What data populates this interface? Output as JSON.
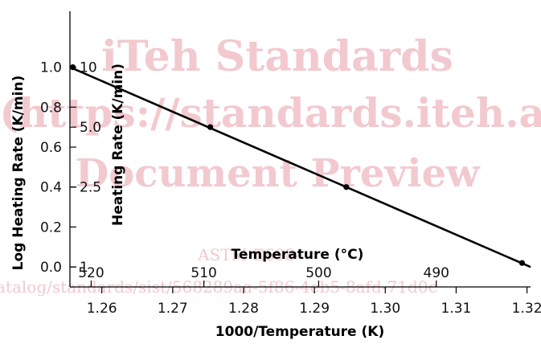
{
  "chart_data": {
    "type": "line",
    "xlabel": "1000/Temperature (K)",
    "ylabel": "Log Heating Rate (K/min)",
    "y2label": "Heating Rate (K/min)",
    "secondary_x_label": "Temperature (°C)",
    "x_ticks": [
      "1.26",
      "1.27",
      "1.28",
      "1.29",
      "1.30",
      "1.31",
      "1.32"
    ],
    "y_ticks": [
      "0.0",
      "0.2",
      "0.4",
      "0.6",
      "0.8",
      "1.0"
    ],
    "y2_ticks": [
      {
        "label": "1",
        "log": 0.0
      },
      {
        "label": "2.5",
        "log": 0.4
      },
      {
        "label": "5.0",
        "log": 0.7
      },
      {
        "label": "10",
        "log": 1.0
      }
    ],
    "secondary_x_ticks": [
      {
        "label": "520",
        "x": 1.2585
      },
      {
        "label": "510",
        "x": 1.2744
      },
      {
        "label": "500",
        "x": 1.2906
      },
      {
        "label": "490",
        "x": 1.3072
      }
    ],
    "xlim": [
      1.2555,
      1.3205
    ],
    "ylim": [
      -0.1,
      1.28
    ],
    "grid": false,
    "series": [
      {
        "points": [
          {
            "x": 1.2559,
            "y": 1.0
          },
          {
            "x": 1.2753,
            "y": 0.7
          },
          {
            "x": 1.2945,
            "y": 0.4
          },
          {
            "x": 1.3193,
            "y": 0.02
          }
        ],
        "fit": [
          {
            "x": 1.2555,
            "y": 1.0
          },
          {
            "x": 1.3205,
            "y": 0.0
          }
        ]
      }
    ]
  },
  "watermark": {
    "line1": "iTeh Standards",
    "line2": "(https://standards.iteh.ai)",
    "line3": "Document Preview",
    "line4": "ASTM E698-",
    "line5": "atalog/standards/sist/568289aa-5f86-4eb5-8afd-71d0c"
  },
  "colors": {
    "line": "#000000",
    "watermark": "#f2c9cf"
  }
}
